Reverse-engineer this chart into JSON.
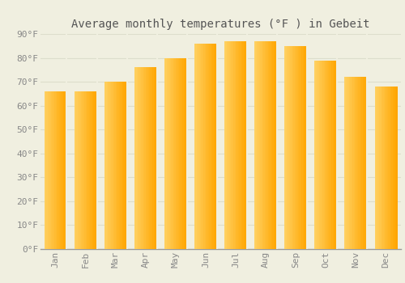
{
  "title": "Average monthly temperatures (°F ) in Gebeit",
  "months": [
    "Jan",
    "Feb",
    "Mar",
    "Apr",
    "May",
    "Jun",
    "Jul",
    "Aug",
    "Sep",
    "Oct",
    "Nov",
    "Dec"
  ],
  "values": [
    66,
    66,
    70,
    76,
    80,
    86,
    87,
    87,
    85,
    79,
    72,
    68
  ],
  "bar_color_light": "#FFD060",
  "bar_color_main": "#FFA500",
  "bar_color_dark": "#F08000",
  "background_color": "#F0EFE0",
  "grid_color": "#DDDDCC",
  "text_color": "#888888",
  "title_color": "#555555",
  "ylim": [
    0,
    90
  ],
  "ytick_step": 10,
  "title_fontsize": 10,
  "tick_fontsize": 8,
  "bar_width": 0.75
}
